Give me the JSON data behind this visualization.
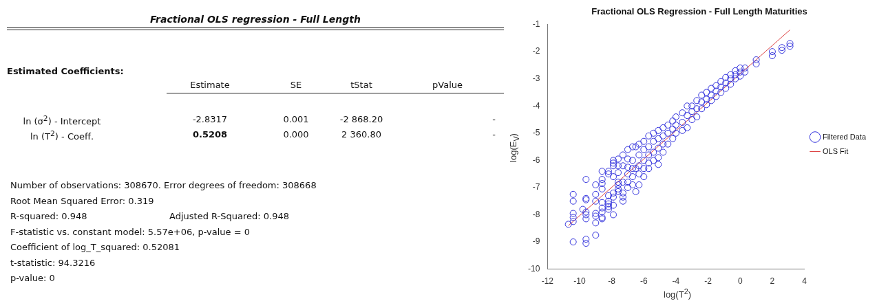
{
  "chart_data": [
    {
      "type": "other",
      "title": "Fractional OLS regression - Full Length",
      "annotations": [
        "Estimated Coefficients:",
        "Estimate",
        "SE",
        "tStat",
        "pValue",
        "ln (σ$^{2}$) - Intercept",
        "-2.8317",
        "0.001",
        "-2 868.20",
        "-",
        "ln (T$^{2}$) - Coeff.",
        "0.5208",
        "0.000",
        "2 360.80",
        "-",
        "Number of observations: 308670. Error degrees of freedom: 308668",
        "Root Mean Squared Error: 0.319",
        "R-squared: 0.948",
        "Adjusted R-Squared: 0.948",
        "F-statistic vs. constant model: 5.57e+06, p-value = 0",
        "Coefficient of log_T_squared: 0.52081",
        "t-statistic: 94.3216",
        "p-value: 0"
      ]
    },
    {
      "type": "scatter",
      "title": "Fractional OLS Regression - Full Length Maturities",
      "xlabel": "log(T$^{2}$)",
      "ylabel": "log(E$_{V}$)",
      "xlim": [
        -12,
        4
      ],
      "xticks": [
        -12,
        -10,
        -8,
        -6,
        -4,
        -2,
        0,
        2,
        4
      ],
      "ylim": [
        -10,
        -1
      ],
      "yticks": [
        -10,
        -9,
        -8,
        -7,
        -6,
        -5,
        -4,
        -3,
        -2,
        -1
      ],
      "grid": false,
      "legend": "right",
      "marker": "circle",
      "series": [
        {
          "name": "Filtered Data",
          "type": "scatter",
          "color": "#3333dd",
          "x": [
            -10.7,
            -10.4,
            -10.4,
            -10.4,
            -10.4,
            -10.4,
            -10.4,
            -9.8,
            -9.6,
            -9.6,
            -9.6,
            -9.6,
            -9.6,
            -9.6,
            -9.6,
            -9.6,
            -9.0,
            -9.0,
            -9.0,
            -9.0,
            -9.0,
            -9.0,
            -9.0,
            -8.6,
            -8.6,
            -8.6,
            -8.6,
            -8.6,
            -8.6,
            -8.6,
            -8.6,
            -8.6,
            -8.2,
            -8.2,
            -8.2,
            -8.2,
            -8.2,
            -8.2,
            -8.2,
            -7.9,
            -7.9,
            -7.9,
            -7.9,
            -7.9,
            -7.9,
            -7.9,
            -7.9,
            -7.6,
            -7.6,
            -7.6,
            -7.6,
            -7.6,
            -7.6,
            -7.6,
            -7.3,
            -7.3,
            -7.3,
            -7.3,
            -7.3,
            -7.3,
            -7.0,
            -7.0,
            -7.0,
            -7.0,
            -7.0,
            -7.0,
            -6.7,
            -6.7,
            -6.7,
            -6.7,
            -6.7,
            -6.5,
            -6.5,
            -6.5,
            -6.3,
            -6.3,
            -6.3,
            -6.3,
            -6.3,
            -6.0,
            -6.0,
            -6.0,
            -6.0,
            -6.0,
            -5.7,
            -5.7,
            -5.7,
            -5.7,
            -5.7,
            -5.4,
            -5.4,
            -5.4,
            -5.4,
            -5.1,
            -5.1,
            -5.1,
            -5.1,
            -5.1,
            -4.8,
            -4.8,
            -4.8,
            -4.8,
            -4.5,
            -4.5,
            -4.5,
            -4.2,
            -4.2,
            -4.2,
            -4.0,
            -4.0,
            -4.0,
            -3.6,
            -3.6,
            -3.6,
            -3.3,
            -3.3,
            -3.3,
            -3.0,
            -3.0,
            -3.0,
            -2.7,
            -2.7,
            -2.7,
            -2.4,
            -2.4,
            -2.4,
            -2.1,
            -2.1,
            -2.1,
            -1.8,
            -1.8,
            -1.8,
            -1.5,
            -1.5,
            -1.5,
            -1.2,
            -1.2,
            -1.2,
            -0.9,
            -0.9,
            -0.9,
            -0.6,
            -0.6,
            -0.6,
            -0.3,
            -0.3,
            -0.3,
            0.0,
            0.0,
            0.0,
            0.3,
            0.3,
            1.0,
            1.0,
            2.0,
            2.0,
            2.6,
            2.6,
            3.1,
            3.1
          ],
          "values": [
            -8.35,
            -7.25,
            -7.5,
            -7.95,
            -8.1,
            -8.25,
            -9.0,
            -7.8,
            -6.7,
            -7.4,
            -7.45,
            -7.9,
            -8.0,
            -8.15,
            -8.9,
            -9.05,
            -6.9,
            -7.25,
            -7.5,
            -7.95,
            -8.05,
            -8.3,
            -8.75,
            -6.4,
            -6.7,
            -6.85,
            -7.05,
            -7.55,
            -7.75,
            -7.9,
            -8.1,
            -8.15,
            -6.4,
            -6.5,
            -7.3,
            -7.5,
            -7.6,
            -7.7,
            -7.8,
            -6.0,
            -6.1,
            -6.2,
            -6.6,
            -7.2,
            -7.35,
            -7.65,
            -8.0,
            -5.95,
            -6.2,
            -6.45,
            -6.8,
            -6.9,
            -7.05,
            -7.15,
            -5.8,
            -6.2,
            -6.8,
            -7.2,
            -7.35,
            -7.5,
            -5.6,
            -5.95,
            -6.25,
            -6.5,
            -6.8,
            -7.0,
            -5.5,
            -6.0,
            -6.3,
            -6.6,
            -6.9,
            -5.5,
            -6.3,
            -7.15,
            -5.4,
            -5.8,
            -6.2,
            -6.5,
            -6.9,
            -5.3,
            -5.6,
            -6.0,
            -6.3,
            -6.6,
            -5.1,
            -5.5,
            -5.8,
            -6.1,
            -6.3,
            -5.0,
            -5.3,
            -5.7,
            -6.0,
            -4.9,
            -5.2,
            -5.55,
            -5.9,
            -6.15,
            -4.8,
            -5.1,
            -5.4,
            -5.7,
            -4.7,
            -5.0,
            -5.4,
            -4.55,
            -4.85,
            -5.2,
            -4.4,
            -4.7,
            -5.0,
            -4.25,
            -4.6,
            -4.9,
            -4.0,
            -4.35,
            -4.8,
            -4.0,
            -4.2,
            -4.5,
            -3.8,
            -4.1,
            -4.4,
            -3.6,
            -3.85,
            -4.1,
            -3.5,
            -3.75,
            -3.95,
            -3.35,
            -3.6,
            -3.8,
            -3.25,
            -3.45,
            -3.65,
            -3.1,
            -3.3,
            -3.5,
            -2.95,
            -3.15,
            -3.35,
            -2.85,
            -3.0,
            -3.2,
            -2.7,
            -2.85,
            -3.0,
            -2.6,
            -2.75,
            -2.9,
            -2.6,
            -2.75,
            -2.3,
            -2.45,
            -2.0,
            -2.15,
            -1.85,
            -1.95,
            -1.7,
            -1.8
          ]
        },
        {
          "name": "OLS Fit",
          "type": "line",
          "color": "#dd4444",
          "marker": "none",
          "line_style": "solid",
          "x": [
            -10.7,
            3.1
          ],
          "values": [
            -8.4,
            -1.2
          ]
        }
      ]
    }
  ]
}
